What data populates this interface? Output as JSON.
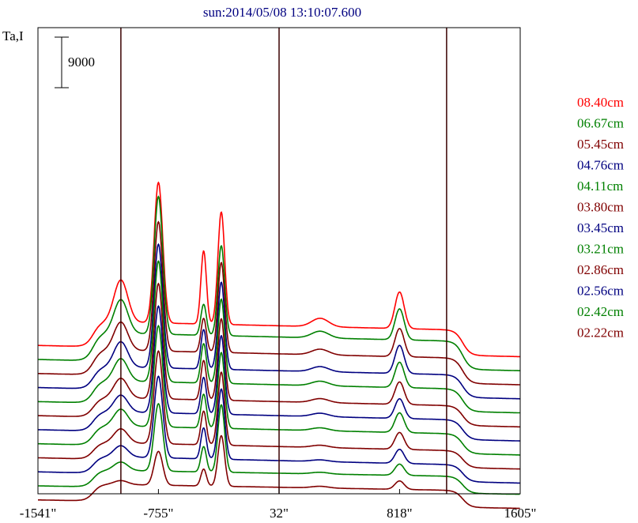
{
  "chart_data": {
    "type": "line",
    "title": "sun:2014/05/08 13:10:07.600",
    "ylabel": "Ta,I",
    "xlim": [
      -1541,
      1605
    ],
    "x_ticks": [
      "-1541\"",
      "-755\"",
      "32\"",
      "818\"",
      "1605\""
    ],
    "x_tick_values": [
      -1541,
      -755,
      32,
      818,
      1605
    ],
    "vertical_markers": [
      -1000,
      32,
      1125
    ],
    "scale_bar_value": 9000,
    "scale_bar_label": "9000",
    "colors": {
      "red": "#ff0000",
      "green": "#008000",
      "darkred": "#800000",
      "blue": "#000080",
      "frame": "#000000"
    },
    "peaks_x": [
      -1000,
      -755,
      -460,
      -345,
      300,
      818,
      1125
    ],
    "legend": [
      {
        "label": "08.40cm",
        "color": "#ff0000"
      },
      {
        "label": "06.67cm",
        "color": "#008000"
      },
      {
        "label": "05.45cm",
        "color": "#800000"
      },
      {
        "label": "04.76cm",
        "color": "#000080"
      },
      {
        "label": "04.11cm",
        "color": "#008000"
      },
      {
        "label": "03.80cm",
        "color": "#800000"
      },
      {
        "label": "03.45cm",
        "color": "#000080"
      },
      {
        "label": "03.21cm",
        "color": "#008000"
      },
      {
        "label": "02.86cm",
        "color": "#800000"
      },
      {
        "label": "02.56cm",
        "color": "#000080"
      },
      {
        "label": "02.42cm",
        "color": "#008000"
      },
      {
        "label": "02.22cm",
        "color": "#800000"
      }
    ],
    "series": [
      {
        "name": "08.40cm",
        "color": "#ff0000",
        "baseline_left": 25000,
        "baseline_right": 23000,
        "plateau": 4500,
        "plateau_start": -1180,
        "plateau_end": 1230,
        "mid_level": 0,
        "peaks": [
          7500,
          25000,
          13000,
          20000,
          1500,
          6500
        ]
      },
      {
        "name": "06.67cm",
        "color": "#008000",
        "baseline_left": 22500,
        "baseline_right": 20500,
        "plateau": 5000,
        "plateau_start": -1180,
        "plateau_end": 1230,
        "mid_level": 0,
        "peaks": [
          6000,
          24500,
          5500,
          16000,
          1200,
          5500
        ]
      },
      {
        "name": "05.45cm",
        "color": "#800000",
        "baseline_left": 20000,
        "baseline_right": 18000,
        "plateau": 4500,
        "plateau_start": -1180,
        "plateau_end": 1230,
        "mid_level": 0,
        "peaks": [
          5000,
          23000,
          6000,
          16000,
          1000,
          5000
        ]
      },
      {
        "name": "04.76cm",
        "color": "#000080",
        "baseline_left": 17500,
        "baseline_right": 15500,
        "plateau": 4000,
        "plateau_start": -1180,
        "plateau_end": 1230,
        "mid_level": 0,
        "peaks": [
          4500,
          22000,
          7000,
          15500,
          900,
          5000
        ]
      },
      {
        "name": "04.11cm",
        "color": "#008000",
        "baseline_left": 15000,
        "baseline_right": 13000,
        "plateau": 4000,
        "plateau_start": -1180,
        "plateau_end": 1230,
        "mid_level": 0,
        "peaks": [
          4000,
          21500,
          7000,
          15000,
          800,
          4500
        ]
      },
      {
        "name": "03.80cm",
        "color": "#800000",
        "baseline_left": 12500,
        "baseline_right": 10500,
        "plateau": 3500,
        "plateau_start": -1180,
        "plateau_end": 1230,
        "mid_level": 0,
        "peaks": [
          3500,
          20500,
          7000,
          14500,
          700,
          4000
        ]
      },
      {
        "name": "03.45cm",
        "color": "#000080",
        "baseline_left": 10000,
        "baseline_right": 8000,
        "plateau": 3500,
        "plateau_start": -1180,
        "plateau_end": 1230,
        "mid_level": 0,
        "peaks": [
          3000,
          19000,
          6500,
          14000,
          600,
          3500
        ]
      },
      {
        "name": "03.21cm",
        "color": "#008000",
        "baseline_left": 7500,
        "baseline_right": 5500,
        "plateau": 3500,
        "plateau_start": -1180,
        "plateau_end": 1230,
        "mid_level": 0,
        "peaks": [
          3000,
          18000,
          6000,
          13500,
          500,
          3500
        ]
      },
      {
        "name": "02.86cm",
        "color": "#800000",
        "baseline_left": 5000,
        "baseline_right": 3000,
        "plateau": 3000,
        "plateau_start": -1180,
        "plateau_end": 1230,
        "mid_level": 0,
        "peaks": [
          2500,
          16500,
          6000,
          13000,
          400,
          3000
        ]
      },
      {
        "name": "02.56cm",
        "color": "#000080",
        "baseline_left": 2500,
        "baseline_right": 500,
        "plateau": 3000,
        "plateau_start": -1180,
        "plateau_end": 1230,
        "mid_level": 0,
        "peaks": [
          2000,
          14500,
          5500,
          12500,
          300,
          2500
        ]
      },
      {
        "name": "02.42cm",
        "color": "#008000",
        "baseline_left": 0,
        "baseline_right": -1500,
        "plateau": 3000,
        "plateau_start": -1180,
        "plateau_end": 1230,
        "mid_level": 0,
        "peaks": [
          1500,
          12000,
          4500,
          12000,
          300,
          2000
        ]
      },
      {
        "name": "02.22cm",
        "color": "#800000",
        "baseline_left": -2500,
        "baseline_right": -4000,
        "plateau": 3000,
        "plateau_start": -1180,
        "plateau_end": 1230,
        "mid_level": 0,
        "peaks": [
          700,
          6000,
          3000,
          9000,
          300,
          1500
        ]
      }
    ]
  }
}
